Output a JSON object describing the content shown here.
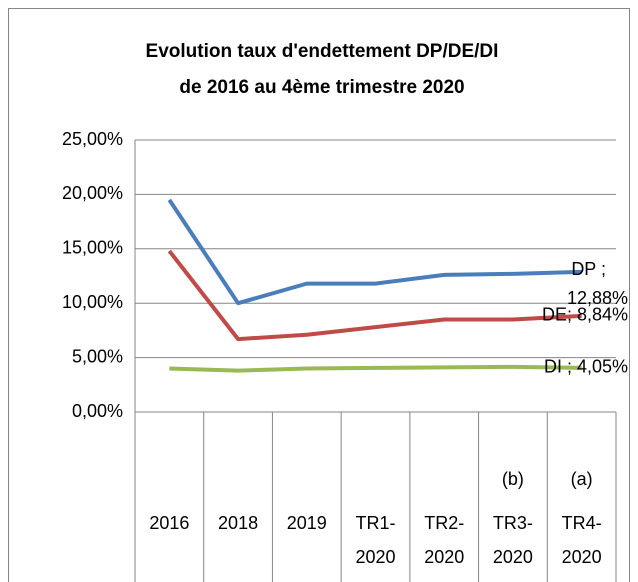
{
  "chart_data": {
    "type": "line",
    "title": [
      "Evolution taux d'endettement DP/DE/DI",
      "de 2016 au 4ème trimestre 2020"
    ],
    "categories": [
      "2016",
      "2018",
      "2019",
      "TR1-2020",
      "TR2-2020",
      "TR3-2020",
      "TR4-2020"
    ],
    "category_notes": [
      null,
      null,
      null,
      null,
      null,
      "(b)",
      "(a)"
    ],
    "series": [
      {
        "name": "DP",
        "color": "#4a7ebb",
        "values": [
          19.5,
          10.0,
          11.8,
          11.8,
          12.6,
          12.7,
          12.88
        ],
        "value_labels": [
          null,
          null,
          null,
          null,
          null,
          null,
          "DP ; 12,88%"
        ]
      },
      {
        "name": "DE",
        "color": "#be4b48",
        "values": [
          14.8,
          6.7,
          7.1,
          7.8,
          8.5,
          8.5,
          8.84
        ],
        "value_labels": [
          null,
          null,
          null,
          null,
          null,
          null,
          "DE; 8,84%"
        ]
      },
      {
        "name": "DI",
        "color": "#98b954",
        "values": [
          4.0,
          3.8,
          4.0,
          4.05,
          4.1,
          4.15,
          4.05
        ],
        "value_labels": [
          null,
          null,
          null,
          null,
          null,
          null,
          "DI ; 4,05%"
        ]
      }
    ],
    "ylim": [
      0,
      25
    ],
    "yticks": [
      {
        "value": 0,
        "label": "0,00%"
      },
      {
        "value": 5,
        "label": "5,00%"
      },
      {
        "value": 10,
        "label": "10,00%"
      },
      {
        "value": 15,
        "label": "15,00%"
      },
      {
        "value": 20,
        "label": "20,00%"
      },
      {
        "value": 25,
        "label": "25,00%"
      }
    ],
    "grid": true
  }
}
